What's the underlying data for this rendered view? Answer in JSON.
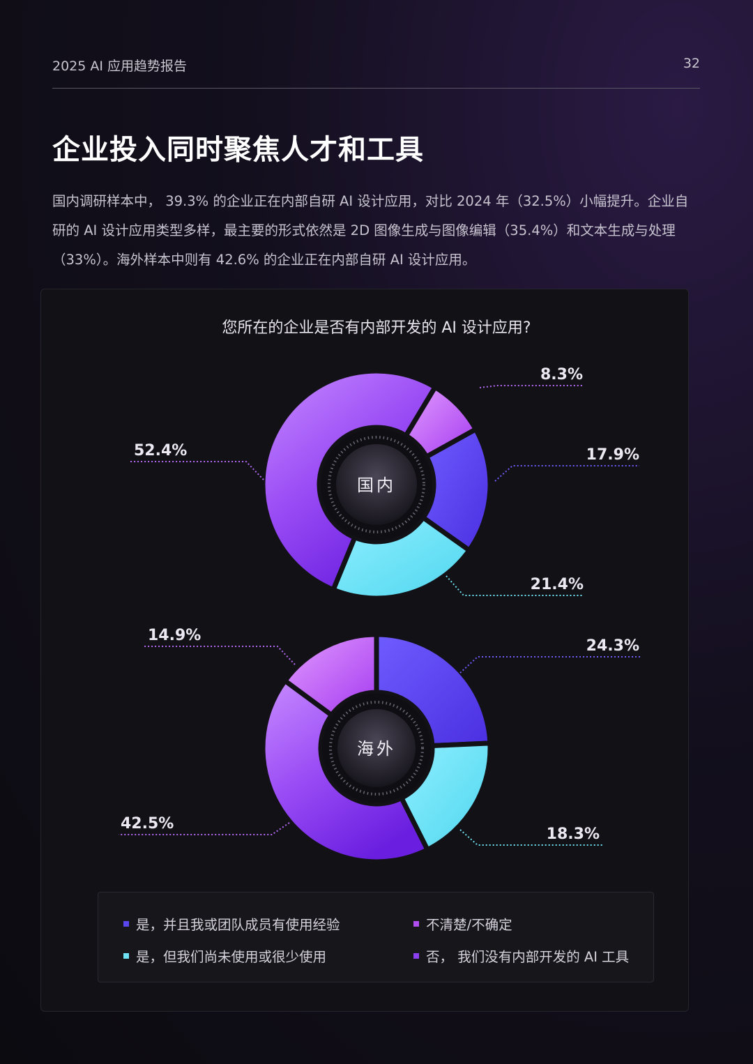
{
  "header": {
    "title": "2025 AI 应用趋势报告",
    "page_number": "32"
  },
  "heading": "企业投入同时聚焦人才和工具",
  "intro": "国内调研样本中， 39.3% 的企业正在内部自研 AI 设计应用，对比 2024 年（32.5%）小幅提升。企业自研的 AI 设计应用类型多样，最主要的形式依然是 2D 图像生成与图像编辑（35.4%）和文本生成与处理（33%）。海外样本中则有 42.6% 的企业正在内部自研 AI 设计应用。",
  "chart_data": {
    "type": "pie",
    "title": "您所在的企业是否有内部开发的 AI 设计应用?",
    "categories": [
      "是，并且我或团队成员有使用经验",
      "不清楚/不确定",
      "是，但我们尚未使用或很少使用",
      "否， 我们没有内部开发的 AI 工具"
    ],
    "colors": {
      "是，并且我或团队成员有使用经验": "#5b47f0",
      "不清楚/不确定": "#b14ef2",
      "是，但我们尚未使用或很少使用": "#6fe3f5",
      "否， 我们没有内部开发的 AI 工具": "#8a3ff0"
    },
    "series": [
      {
        "name": "国内",
        "slices": [
          {
            "category": "不清楚/不确定",
            "value": 8.3,
            "label": "8.3%"
          },
          {
            "category": "是，并且我或团队成员有使用经验",
            "value": 17.9,
            "label": "17.9%"
          },
          {
            "category": "是，但我们尚未使用或很少使用",
            "value": 21.4,
            "label": "21.4%"
          },
          {
            "category": "否， 我们没有内部开发的 AI 工具",
            "value": 52.4,
            "label": "52.4%"
          }
        ]
      },
      {
        "name": "海外",
        "slices": [
          {
            "category": "是，并且我或团队成员有使用经验",
            "value": 24.3,
            "label": "24.3%"
          },
          {
            "category": "是，但我们尚未使用或很少使用",
            "value": 18.3,
            "label": "18.3%"
          },
          {
            "category": "否， 我们没有内部开发的 AI 工具",
            "value": 42.5,
            "label": "42.5%"
          },
          {
            "category": "不清楚/不确定",
            "value": 14.9,
            "label": "14.9%"
          }
        ]
      }
    ]
  }
}
